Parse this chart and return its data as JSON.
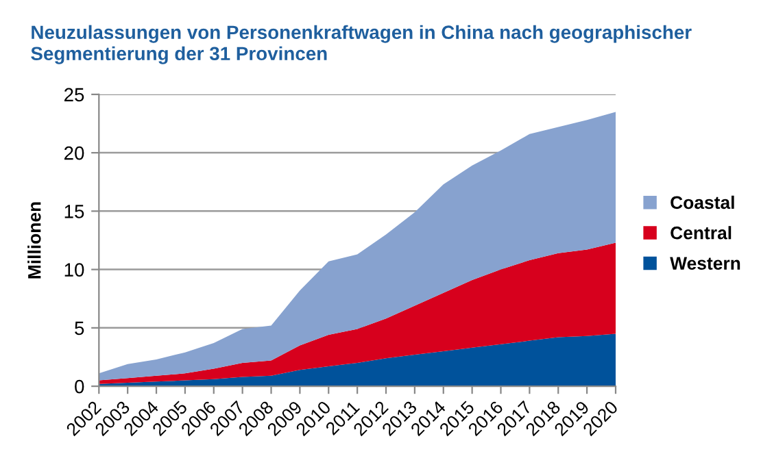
{
  "chart_data": {
    "type": "area",
    "title": "Neuzulassungen von Personenkraftwagen in China nach geographischer\nSegmentierung der 31 Provincen",
    "ylabel": "Millionen",
    "categories": [
      "2002",
      "2003",
      "2004",
      "2005",
      "2006",
      "2007",
      "2008",
      "2009",
      "2010",
      "2011",
      "2012",
      "2013",
      "2014",
      "2015",
      "2016",
      "2017",
      "2018",
      "2019",
      "2020"
    ],
    "stacked": true,
    "series": [
      {
        "name": "Western",
        "color": "#00529b",
        "values": [
          0.2,
          0.3,
          0.4,
          0.5,
          0.6,
          0.8,
          0.9,
          1.4,
          1.7,
          2.0,
          2.4,
          2.7,
          3.0,
          3.3,
          3.6,
          3.9,
          4.2,
          4.3,
          4.5
        ]
      },
      {
        "name": "Central",
        "color": "#d7001d",
        "values": [
          0.3,
          0.4,
          0.5,
          0.6,
          0.9,
          1.2,
          1.3,
          2.1,
          2.7,
          2.9,
          3.4,
          4.2,
          5.0,
          5.8,
          6.4,
          6.9,
          7.2,
          7.4,
          7.8
        ]
      },
      {
        "name": "Coastal",
        "color": "#87a2cf",
        "values": [
          0.6,
          1.2,
          1.4,
          1.8,
          2.2,
          2.9,
          3.0,
          4.7,
          6.3,
          6.4,
          7.2,
          8.0,
          9.3,
          9.8,
          10.2,
          10.8,
          10.8,
          11.1,
          11.2
        ]
      }
    ],
    "ylim": [
      0,
      25
    ],
    "yticks": [
      0,
      5,
      10,
      15,
      20,
      25
    ],
    "grid": "y",
    "legend": "right"
  }
}
